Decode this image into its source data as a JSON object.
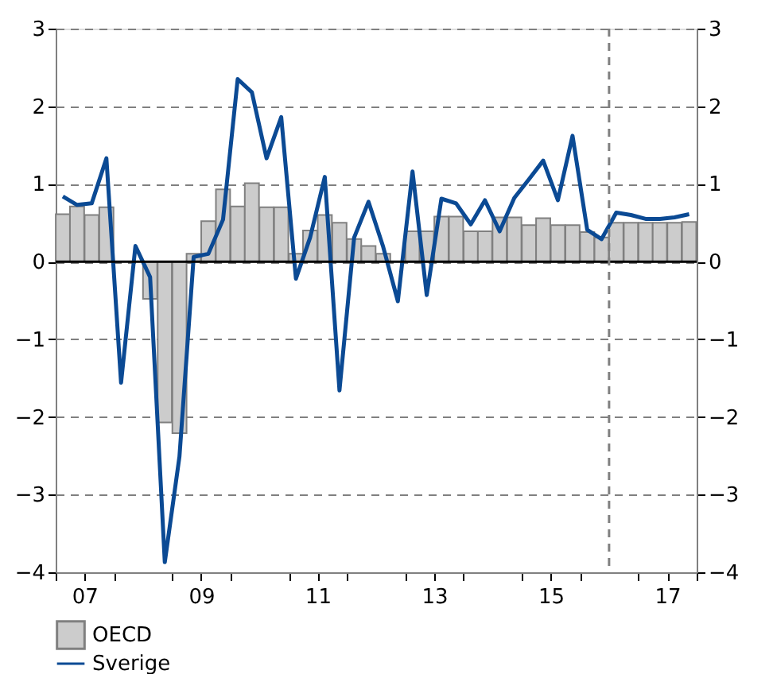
{
  "chart_data": {
    "type": "bar",
    "x": [
      "2007-02-15",
      "2007-05-15",
      "2007-08-15",
      "2007-11-15",
      "2008-02-15",
      "2008-05-15",
      "2008-08-15",
      "2008-11-15",
      "2009-02-15",
      "2009-05-15",
      "2009-08-15",
      "2009-11-15",
      "2010-02-15",
      "2010-05-15",
      "2010-08-15",
      "2010-11-15",
      "2011-02-15",
      "2011-05-15",
      "2011-08-15",
      "2011-11-15",
      "2012-02-15",
      "2012-05-15",
      "2012-08-15",
      "2012-11-15",
      "2013-02-15",
      "2013-05-15",
      "2013-08-15",
      "2013-11-15",
      "2014-02-15",
      "2014-05-15",
      "2014-08-15",
      "2014-11-15",
      "2015-02-15",
      "2015-05-15",
      "2015-08-15",
      "2015-11-15",
      "2016-02-15",
      "2016-05-15",
      "2016-08-15",
      "2016-11-15",
      "2017-02-15",
      "2017-05-15",
      "2017-08-15",
      "2017-11-15"
    ],
    "series": [
      {
        "name": "OECD",
        "color": "#cccccc",
        "values": [
          0.61,
          0.71,
          0.6,
          0.7,
          0,
          0,
          -0.48,
          -2.07,
          -2.21,
          0.1,
          0.52,
          0.93,
          0.71,
          1.01,
          0.7,
          0.7,
          0.1,
          0.4,
          0.6,
          0.5,
          0.29,
          0.2,
          0.1,
          0,
          0.39,
          0.39,
          0.58,
          0.58,
          0.39,
          0.39,
          0.57,
          0.57,
          0.47,
          0.56,
          0.47,
          0.47,
          0.38,
          0.31,
          0.5,
          0.5,
          0.5,
          0.5,
          0.5,
          0.51
        ]
      },
      {
        "name": "Sverige",
        "type": "line",
        "color": "#0b4a94",
        "values": [
          0.84,
          0.73,
          0.75,
          1.33,
          -1.56,
          0.2,
          -0.2,
          -3.87,
          -2.51,
          0.06,
          0.1,
          0.54,
          2.35,
          2.18,
          1.33,
          1.86,
          -0.22,
          0.31,
          1.09,
          -1.66,
          0.31,
          0.77,
          0.19,
          -0.51,
          1.16,
          -0.43,
          0.81,
          0.75,
          0.48,
          0.79,
          0.39,
          0.82,
          1.06,
          1.3,
          0.79,
          1.62,
          0.41,
          0.29,
          0.63,
          0.6,
          0.55,
          0.55,
          0.57,
          0.61
        ]
      }
    ],
    "xlim": [
      "2007-01-01",
      "2018-01-01"
    ],
    "xticks": [
      {
        "value": "2007-01-01",
        "label": null
      },
      {
        "value": "2007-07-01",
        "label": "07"
      },
      {
        "value": "2008-01-01",
        "label": null
      },
      {
        "value": "2009-01-01",
        "label": null
      },
      {
        "value": "2009-07-01",
        "label": "09"
      },
      {
        "value": "2010-01-01",
        "label": null
      },
      {
        "value": "2011-01-01",
        "label": null
      },
      {
        "value": "2011-07-01",
        "label": "11"
      },
      {
        "value": "2012-01-01",
        "label": null
      },
      {
        "value": "2013-01-01",
        "label": null
      },
      {
        "value": "2013-07-01",
        "label": "13"
      },
      {
        "value": "2014-01-01",
        "label": null
      },
      {
        "value": "2015-01-01",
        "label": null
      },
      {
        "value": "2015-07-01",
        "label": "15"
      },
      {
        "value": "2016-01-01",
        "label": null
      },
      {
        "value": "2017-01-01",
        "label": null
      },
      {
        "value": "2017-07-01",
        "label": "17"
      },
      {
        "value": "2018-01-01",
        "label": null
      }
    ],
    "ylim": [
      -4,
      3
    ],
    "yticks": [
      -4,
      -3,
      -2,
      -1,
      0,
      1,
      2,
      3
    ],
    "y2lim": [
      -4,
      3
    ],
    "y2ticks": [
      -4,
      -3,
      -2,
      -1,
      0,
      1,
      2,
      3
    ],
    "grid": "y",
    "ref_lines": [
      {
        "axis": "y",
        "value": 0,
        "color": "#000000",
        "line_style": "solid"
      },
      {
        "axis": "x",
        "value": "2016-07-01",
        "color": "#808080",
        "line_style": "dashed"
      }
    ],
    "legend": "bottom left"
  }
}
